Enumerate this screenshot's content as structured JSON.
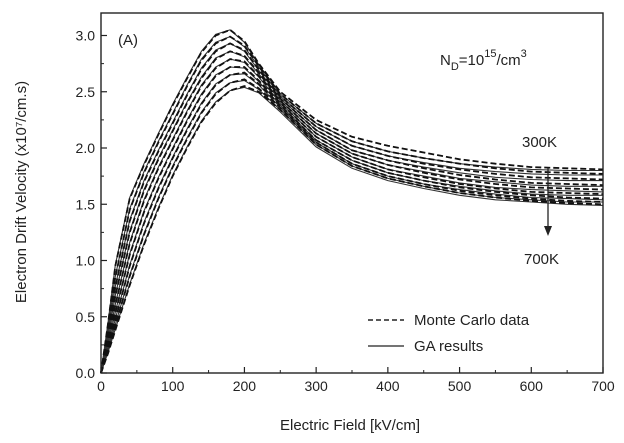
{
  "chart_data": {
    "type": "line",
    "panel_label": "(A)",
    "xlabel": "Electric Field [kV/cm]",
    "ylabel": "Electron Drift Velocity (x10⁷/cm.s)",
    "xlim": [
      0,
      700
    ],
    "ylim": [
      0,
      3.2
    ],
    "x_ticks": [
      0,
      100,
      200,
      300,
      400,
      500,
      600,
      700
    ],
    "y_ticks": [
      0.0,
      0.5,
      1.0,
      1.5,
      2.0,
      2.5,
      3.0
    ],
    "x_tick_labels": [
      "0",
      "100",
      "200",
      "300",
      "400",
      "500",
      "600",
      "700"
    ],
    "y_tick_labels": [
      "0.0",
      "0.5",
      "1.0",
      "1.5",
      "2.0",
      "2.5",
      "3.0"
    ],
    "grid": false,
    "annotations": {
      "doping": {
        "base": "N",
        "sub": "D",
        "mid": "=10",
        "sup": "15",
        "tail": "/cm",
        "sup2": "3"
      },
      "temp_high_label": "300K",
      "temp_low_label": "700K"
    },
    "legend": {
      "placement": "bottom-right",
      "entries": [
        {
          "label": "Monte Carlo data",
          "style": "dashed"
        },
        {
          "label": "GA results",
          "style": "solid"
        }
      ]
    },
    "x": [
      0,
      10,
      20,
      40,
      60,
      80,
      100,
      120,
      140,
      160,
      180,
      200,
      220,
      250,
      300,
      350,
      400,
      450,
      500,
      550,
      600,
      650,
      700
    ],
    "series_monte_carlo": [
      {
        "values": [
          0,
          0.45,
          0.95,
          1.55,
          1.85,
          2.12,
          2.38,
          2.62,
          2.85,
          3.0,
          3.05,
          2.95,
          2.75,
          2.5,
          2.25,
          2.1,
          2.02,
          1.96,
          1.9,
          1.86,
          1.83,
          1.82,
          1.81
        ]
      },
      {
        "values": [
          0,
          0.4,
          0.85,
          1.45,
          1.78,
          2.05,
          2.3,
          2.55,
          2.78,
          2.93,
          2.99,
          2.91,
          2.73,
          2.48,
          2.22,
          2.06,
          1.97,
          1.91,
          1.86,
          1.82,
          1.79,
          1.78,
          1.77
        ]
      },
      {
        "values": [
          0,
          0.36,
          0.76,
          1.35,
          1.7,
          1.97,
          2.22,
          2.47,
          2.7,
          2.86,
          2.93,
          2.87,
          2.7,
          2.46,
          2.19,
          2.02,
          1.93,
          1.86,
          1.81,
          1.77,
          1.74,
          1.73,
          1.72
        ]
      },
      {
        "values": [
          0,
          0.32,
          0.68,
          1.25,
          1.62,
          1.9,
          2.15,
          2.4,
          2.62,
          2.79,
          2.86,
          2.82,
          2.67,
          2.44,
          2.16,
          1.98,
          1.89,
          1.82,
          1.76,
          1.72,
          1.69,
          1.68,
          1.67
        ]
      },
      {
        "values": [
          0,
          0.28,
          0.6,
          1.15,
          1.53,
          1.82,
          2.07,
          2.32,
          2.55,
          2.71,
          2.79,
          2.77,
          2.64,
          2.42,
          2.13,
          1.95,
          1.85,
          1.78,
          1.72,
          1.68,
          1.65,
          1.64,
          1.63
        ]
      },
      {
        "values": [
          0,
          0.25,
          0.53,
          1.05,
          1.43,
          1.73,
          1.99,
          2.24,
          2.47,
          2.64,
          2.72,
          2.72,
          2.6,
          2.4,
          2.1,
          1.92,
          1.81,
          1.74,
          1.68,
          1.64,
          1.61,
          1.6,
          1.59
        ]
      },
      {
        "values": [
          0,
          0.22,
          0.47,
          0.95,
          1.33,
          1.64,
          1.91,
          2.16,
          2.39,
          2.56,
          2.65,
          2.67,
          2.57,
          2.38,
          2.07,
          1.89,
          1.78,
          1.71,
          1.65,
          1.61,
          1.58,
          1.56,
          1.55
        ]
      },
      {
        "values": [
          0,
          0.2,
          0.42,
          0.86,
          1.23,
          1.55,
          1.83,
          2.08,
          2.31,
          2.48,
          2.58,
          2.61,
          2.53,
          2.36,
          2.05,
          1.86,
          1.75,
          1.68,
          1.62,
          1.58,
          1.55,
          1.53,
          1.52
        ]
      },
      {
        "values": [
          0,
          0.18,
          0.38,
          0.78,
          1.14,
          1.46,
          1.75,
          2.0,
          2.23,
          2.4,
          2.51,
          2.55,
          2.5,
          2.34,
          2.03,
          1.84,
          1.73,
          1.66,
          1.6,
          1.56,
          1.53,
          1.51,
          1.5
        ]
      }
    ],
    "series_ga": [
      {
        "values": [
          0,
          0.46,
          0.96,
          1.56,
          1.86,
          2.13,
          2.39,
          2.63,
          2.86,
          3.01,
          3.05,
          2.94,
          2.74,
          2.48,
          2.22,
          2.06,
          1.97,
          1.91,
          1.86,
          1.83,
          1.81,
          1.8,
          1.8
        ]
      },
      {
        "values": [
          0,
          0.41,
          0.86,
          1.46,
          1.79,
          2.06,
          2.31,
          2.56,
          2.79,
          2.94,
          2.99,
          2.9,
          2.72,
          2.46,
          2.19,
          2.02,
          1.93,
          1.87,
          1.82,
          1.79,
          1.77,
          1.76,
          1.76
        ]
      },
      {
        "values": [
          0,
          0.37,
          0.77,
          1.36,
          1.71,
          1.98,
          2.23,
          2.48,
          2.71,
          2.87,
          2.93,
          2.86,
          2.69,
          2.44,
          2.16,
          1.98,
          1.89,
          1.83,
          1.78,
          1.74,
          1.72,
          1.71,
          1.71
        ]
      },
      {
        "values": [
          0,
          0.33,
          0.69,
          1.26,
          1.63,
          1.91,
          2.16,
          2.41,
          2.63,
          2.8,
          2.86,
          2.81,
          2.66,
          2.42,
          2.13,
          1.95,
          1.85,
          1.79,
          1.73,
          1.7,
          1.67,
          1.66,
          1.66
        ]
      },
      {
        "values": [
          0,
          0.29,
          0.61,
          1.16,
          1.54,
          1.83,
          2.08,
          2.33,
          2.56,
          2.72,
          2.79,
          2.76,
          2.63,
          2.4,
          2.1,
          1.92,
          1.81,
          1.75,
          1.69,
          1.65,
          1.63,
          1.62,
          1.61
        ]
      },
      {
        "values": [
          0,
          0.26,
          0.54,
          1.06,
          1.44,
          1.74,
          2.0,
          2.25,
          2.48,
          2.65,
          2.72,
          2.71,
          2.59,
          2.38,
          2.07,
          1.89,
          1.78,
          1.71,
          1.66,
          1.62,
          1.59,
          1.58,
          1.58
        ]
      },
      {
        "values": [
          0,
          0.23,
          0.48,
          0.96,
          1.34,
          1.65,
          1.92,
          2.17,
          2.4,
          2.57,
          2.65,
          2.66,
          2.56,
          2.36,
          2.05,
          1.86,
          1.75,
          1.68,
          1.63,
          1.59,
          1.56,
          1.55,
          1.54
        ]
      },
      {
        "values": [
          0,
          0.21,
          0.43,
          0.87,
          1.24,
          1.56,
          1.84,
          2.09,
          2.32,
          2.49,
          2.58,
          2.6,
          2.52,
          2.34,
          2.03,
          1.84,
          1.73,
          1.66,
          1.6,
          1.56,
          1.54,
          1.52,
          1.52
        ]
      },
      {
        "values": [
          0,
          0.19,
          0.39,
          0.79,
          1.15,
          1.47,
          1.76,
          2.01,
          2.24,
          2.41,
          2.51,
          2.54,
          2.49,
          2.32,
          2.01,
          1.82,
          1.71,
          1.64,
          1.58,
          1.54,
          1.52,
          1.5,
          1.49
        ]
      }
    ]
  }
}
